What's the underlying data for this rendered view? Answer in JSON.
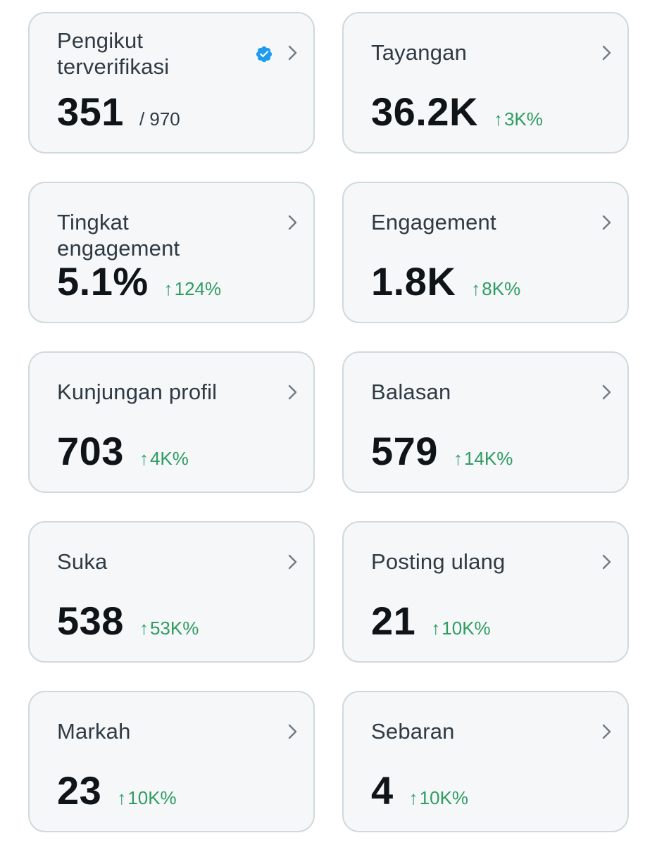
{
  "cards": [
    {
      "label": "Pengikut terverifikasi",
      "value": "351",
      "total": "/ 970",
      "verified": true
    },
    {
      "label": "Tayangan",
      "value": "36.2K",
      "delta": "3K%"
    },
    {
      "label": "Tingkat engagement",
      "value": "5.1%",
      "delta": "124%"
    },
    {
      "label": "Engagement",
      "value": "1.8K",
      "delta": "8K%"
    },
    {
      "label": "Kunjungan profil",
      "value": "703",
      "delta": "4K%"
    },
    {
      "label": "Balasan",
      "value": "579",
      "delta": "14K%"
    },
    {
      "label": "Suka",
      "value": "538",
      "delta": "53K%"
    },
    {
      "label": "Posting ulang",
      "value": "21",
      "delta": "10K%"
    },
    {
      "label": "Markah",
      "value": "23",
      "delta": "10K%"
    },
    {
      "label": "Sebaran",
      "value": "4",
      "delta": "10K%"
    }
  ],
  "icons": {
    "chevron": "chevron-right-icon",
    "verified": "verified-badge-icon",
    "delta_arrow": "arrow-up-icon"
  },
  "colors": {
    "card_background": "#f5f7f8",
    "card_border": "#cfd9de",
    "value_text": "#0f1419",
    "label_text": "#2f3a44",
    "positive_delta": "#2f9c62",
    "verified_blue": "#1d9bf0"
  },
  "symbols": {
    "arrow_up": "↑"
  }
}
